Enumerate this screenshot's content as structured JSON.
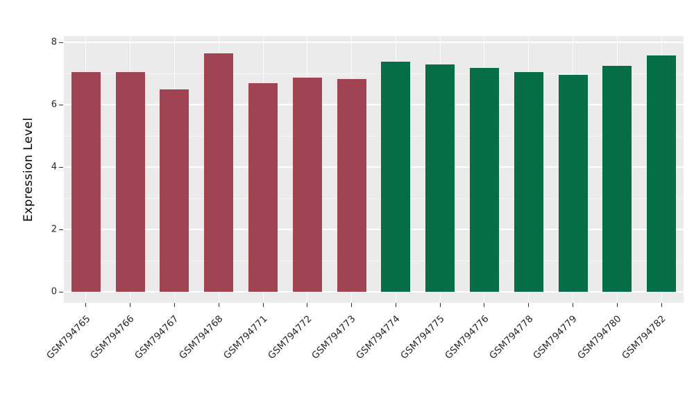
{
  "figure": {
    "background": "#ffffff",
    "panel_background": "#EBEBEB",
    "grid_color": "#ffffff",
    "tick_color": "#333333",
    "text_color": "#262626"
  },
  "chart_data": {
    "type": "bar",
    "title": "",
    "xlabel": "",
    "ylabel": "Expression Level",
    "ylim": [
      0,
      8
    ],
    "yticks": [
      0,
      2,
      4,
      6,
      8
    ],
    "yticks_minor": [
      1,
      3,
      5,
      7
    ],
    "grid": "on",
    "legend": "none",
    "bar_groups": {
      "left": "#A04353",
      "right": "#056E47"
    },
    "categories": [
      "GSM794765",
      "GSM794766",
      "GSM794767",
      "GSM794768",
      "GSM794771",
      "GSM794772",
      "GSM794773",
      "GSM794774",
      "GSM794775",
      "GSM794776",
      "GSM794778",
      "GSM794779",
      "GSM794780",
      "GSM794782"
    ],
    "bars": [
      {
        "label": "GSM794765",
        "value": 7.05,
        "group": "left"
      },
      {
        "label": "GSM794766",
        "value": 7.05,
        "group": "left"
      },
      {
        "label": "GSM794767",
        "value": 6.5,
        "group": "left"
      },
      {
        "label": "GSM794768",
        "value": 7.65,
        "group": "left"
      },
      {
        "label": "GSM794771",
        "value": 6.7,
        "group": "left"
      },
      {
        "label": "GSM794772",
        "value": 6.87,
        "group": "left"
      },
      {
        "label": "GSM794773",
        "value": 6.83,
        "group": "left"
      },
      {
        "label": "GSM794774",
        "value": 7.38,
        "group": "right"
      },
      {
        "label": "GSM794775",
        "value": 7.3,
        "group": "right"
      },
      {
        "label": "GSM794776",
        "value": 7.18,
        "group": "right"
      },
      {
        "label": "GSM794778",
        "value": 7.05,
        "group": "right"
      },
      {
        "label": "GSM794779",
        "value": 6.95,
        "group": "right"
      },
      {
        "label": "GSM794780",
        "value": 7.25,
        "group": "right"
      },
      {
        "label": "GSM794782",
        "value": 7.57,
        "group": "right"
      }
    ]
  }
}
